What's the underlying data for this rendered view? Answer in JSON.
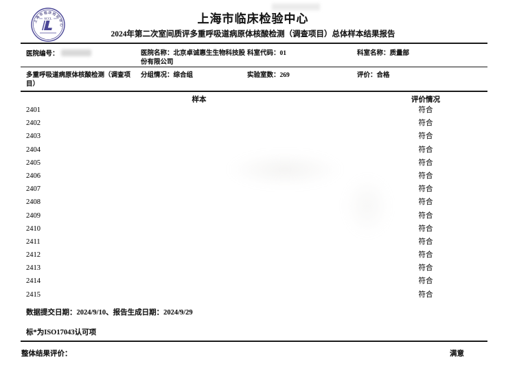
{
  "header": {
    "org_name": "上海市临床检验中心",
    "report_title": "2024年第二次室间质评多重呼吸道病原体核酸检测（调查项目）总体样本结果报告",
    "logo_text": "SCCL",
    "seal_color": "#4b4796"
  },
  "info": {
    "hospital_no_label": "医院编号：",
    "hospital_name_label": "医院名称：",
    "hospital_name_value": "北京卓诚惠生生物科技股份有限公司",
    "dept_code_label": "科室代码：",
    "dept_code_value": "01",
    "dept_name_label": "科室名称：",
    "dept_name_value": "质量部",
    "project_name": "多重呼吸道病原体核酸检测（调查项目）",
    "group_label": "分组情况：",
    "group_value": "综合组",
    "lab_count_label": "实验室数：",
    "lab_count_value": "269",
    "eval_label": "评价：",
    "eval_value": "合格"
  },
  "table": {
    "col_sample": "样本",
    "col_result": "评价情况",
    "rows": [
      {
        "sample": "2401",
        "result": "符合"
      },
      {
        "sample": "2402",
        "result": "符合"
      },
      {
        "sample": "2403",
        "result": "符合"
      },
      {
        "sample": "2404",
        "result": "符合"
      },
      {
        "sample": "2405",
        "result": "符合"
      },
      {
        "sample": "2406",
        "result": "符合"
      },
      {
        "sample": "2407",
        "result": "符合"
      },
      {
        "sample": "2408",
        "result": "符合"
      },
      {
        "sample": "2409",
        "result": "符合"
      },
      {
        "sample": "2410",
        "result": "符合"
      },
      {
        "sample": "2411",
        "result": "符合"
      },
      {
        "sample": "2412",
        "result": "符合"
      },
      {
        "sample": "2413",
        "result": "符合"
      },
      {
        "sample": "2414",
        "result": "符合"
      },
      {
        "sample": "2415",
        "result": "符合"
      }
    ]
  },
  "footer": {
    "dates_line": "数据提交日期：2024/9/10、报告生成日期：2024/9/29",
    "iso_note": "标*为ISO17043认可项",
    "overall_label": "整体结果评价：",
    "overall_value": "满意"
  }
}
